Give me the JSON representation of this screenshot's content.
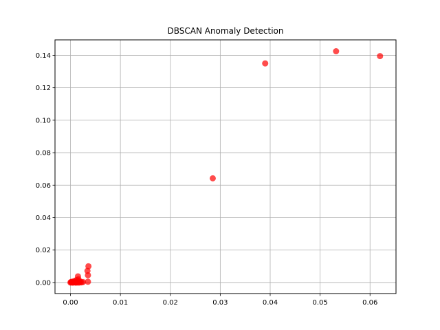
{
  "chart_data": {
    "type": "scatter",
    "title": "DBSCAN Anomaly Detection",
    "xlabel": "",
    "ylabel": "",
    "xlim": [
      -0.0031,
      0.0652
    ],
    "ylim": [
      -0.0068,
      0.1495
    ],
    "xticks": [
      0.0,
      0.01,
      0.02,
      0.03,
      0.04,
      0.05,
      0.06
    ],
    "xtick_labels": [
      "0.00",
      "0.01",
      "0.02",
      "0.03",
      "0.04",
      "0.05",
      "0.06"
    ],
    "yticks": [
      0.0,
      0.02,
      0.04,
      0.06,
      0.08,
      0.1,
      0.12,
      0.14
    ],
    "ytick_labels": [
      "0.00",
      "0.02",
      "0.04",
      "0.06",
      "0.08",
      "0.10",
      "0.12",
      "0.14"
    ],
    "grid": true,
    "legend": "none",
    "marker_color": "#ff0000",
    "marker_alpha": 0.7,
    "points": [
      {
        "x": 0.062,
        "y": 0.1395
      },
      {
        "x": 0.0532,
        "y": 0.1425
      },
      {
        "x": 0.039,
        "y": 0.135
      },
      {
        "x": 0.0285,
        "y": 0.0642
      },
      {
        "x": 0.0036,
        "y": 0.01
      },
      {
        "x": 0.0034,
        "y": 0.0072
      },
      {
        "x": 0.0035,
        "y": 0.0045
      },
      {
        "x": 0.0035,
        "y": 0.0005
      },
      {
        "x": 0.0015,
        "y": 0.0038
      },
      {
        "x": 0.0016,
        "y": 0.002
      },
      {
        "x": 0.0012,
        "y": 0.0015
      },
      {
        "x": 0.0008,
        "y": 0.001
      },
      {
        "x": 0.002,
        "y": 0.0005
      },
      {
        "x": 0.0025,
        "y": 0.0003
      },
      {
        "x": 0.0018,
        "y": 0.0
      },
      {
        "x": 0.001,
        "y": 0.0
      },
      {
        "x": 0.0006,
        "y": 0.0002
      },
      {
        "x": 0.0004,
        "y": 0.0
      },
      {
        "x": 0.0002,
        "y": 0.0001
      },
      {
        "x": 0.0,
        "y": 0.0
      },
      {
        "x": 0.0001,
        "y": 0.0003
      },
      {
        "x": 0.0003,
        "y": 0.0005
      },
      {
        "x": 0.0005,
        "y": 0.0
      },
      {
        "x": 0.0007,
        "y": 0.0001
      },
      {
        "x": 0.0009,
        "y": 0.0002
      },
      {
        "x": 0.0011,
        "y": 0.0
      },
      {
        "x": 0.0013,
        "y": 0.0001
      },
      {
        "x": 0.0015,
        "y": 0.0
      },
      {
        "x": 0.0022,
        "y": 0.0001
      },
      {
        "x": 0.0017,
        "y": 0.0008
      }
    ]
  }
}
